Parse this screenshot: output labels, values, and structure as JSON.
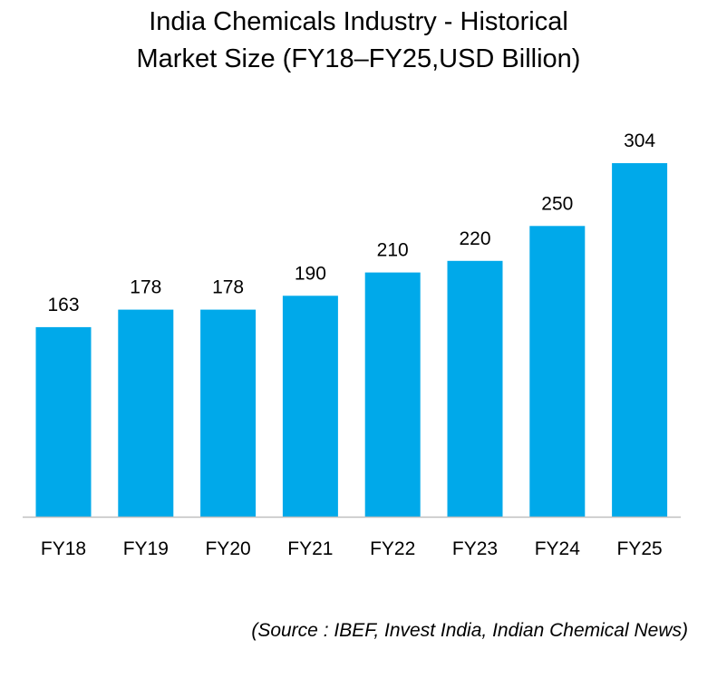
{
  "title": {
    "line1": "India Chemicals Industry - Historical",
    "line2": "Market Size (FY18–FY25,USD Billion)"
  },
  "source": "(Source : IBEF, Invest India, Indian Chemical News)",
  "colors": {
    "bar": "#00A9EA",
    "axis": "#BFBFBF",
    "text": "#000000"
  },
  "chart_data": {
    "type": "bar",
    "title": "India Chemicals Industry - Historical Market Size (FY18–FY25,USD Billion)",
    "xlabel": "",
    "ylabel": "",
    "categories": [
      "FY18",
      "FY19",
      "FY20",
      "FY21",
      "FY22",
      "FY23",
      "FY24",
      "FY25"
    ],
    "values": [
      163,
      178,
      178,
      190,
      210,
      220,
      250,
      304
    ],
    "data_labels": [
      "163",
      "178",
      "178",
      "190",
      "210",
      "220",
      "250",
      "304"
    ],
    "ylim": [
      0,
      304
    ],
    "grid": false,
    "legend": "none"
  }
}
